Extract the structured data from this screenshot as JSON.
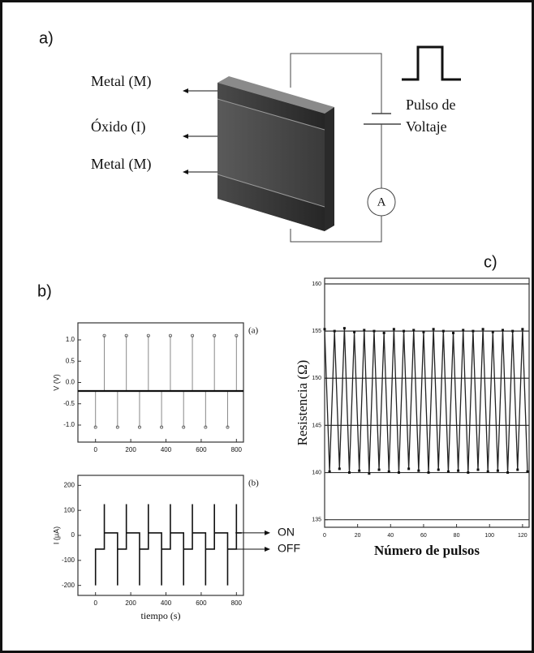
{
  "panel_labels": [
    "a)",
    "b)",
    "c)"
  ],
  "diagram": {
    "layers": [
      "Metal (M)",
      "Óxido (I)",
      "Metal (M)"
    ],
    "source": [
      "Pulso de",
      "Voltaje"
    ],
    "meter": "A"
  },
  "chart_data": [
    {
      "type": "stem",
      "panel": "(a)",
      "ylabel": "V (V)",
      "xlim": [
        -100,
        840
      ],
      "ylim": [
        -1.4,
        1.4
      ],
      "xticks": [
        0,
        200,
        400,
        600,
        800
      ],
      "yticks": [
        {
          "value": 1,
          "label": "1.0"
        },
        0.5,
        {
          "value": 0,
          "label": "0.0"
        },
        -0.5,
        {
          "value": -1,
          "label": "-1.0"
        }
      ],
      "color": "#111",
      "baseline": -0.2,
      "x": [
        0,
        50,
        125,
        175,
        250,
        300,
        375,
        425,
        500,
        550,
        625,
        675,
        750,
        800
      ],
      "values": [
        -1.05,
        1.1,
        -1.05,
        1.1,
        -1.05,
        1.1,
        -1.05,
        1.1,
        -1.05,
        1.1,
        -1.05,
        1.1,
        -1.05,
        1.1
      ]
    },
    {
      "type": "line",
      "panel": "(b)",
      "ylabel": "I (μA)",
      "xlabel": "tiempo (s)",
      "xlim": [
        -100,
        840
      ],
      "ylim": [
        -240,
        240
      ],
      "xticks": [
        0,
        200,
        400,
        600,
        800
      ],
      "yticks": [
        200,
        100,
        0,
        -100,
        -200
      ],
      "color": "#111",
      "x": [
        0,
        0,
        50,
        50,
        50,
        125,
        125,
        125,
        175,
        175,
        175,
        250,
        250,
        250,
        300,
        300,
        300,
        375,
        375,
        375,
        425,
        425,
        425,
        500,
        500,
        500,
        550,
        550,
        550,
        625,
        625,
        625,
        675,
        675,
        675,
        750,
        750,
        750,
        800,
        800,
        800,
        830
      ],
      "values": [
        -200,
        -55,
        -55,
        125,
        10,
        10,
        -200,
        -55,
        -55,
        125,
        10,
        10,
        -200,
        -55,
        -55,
        125,
        10,
        10,
        -200,
        -55,
        -55,
        125,
        10,
        10,
        -200,
        -55,
        -55,
        125,
        10,
        10,
        -200,
        -55,
        -55,
        125,
        10,
        10,
        -200,
        -55,
        -55,
        125,
        10,
        10
      ],
      "annotations": [
        {
          "text": "ON",
          "y": 10
        },
        {
          "text": "OFF",
          "y": -55
        }
      ]
    },
    {
      "type": "line",
      "ylabel": "Resistencia (Ω)",
      "xlabel": "Número de pulsos",
      "xlim": [
        0,
        124
      ],
      "ylim": [
        134.2,
        160.6
      ],
      "xticks": [
        0,
        20,
        40,
        60,
        80,
        100,
        120
      ],
      "yticks": [
        160,
        155,
        150,
        145,
        140,
        135
      ],
      "grid": true,
      "markers": true,
      "color": "#222",
      "x": [
        0,
        3,
        6,
        9,
        12,
        15,
        18,
        21,
        24,
        27,
        30,
        33,
        36,
        39,
        42,
        45,
        48,
        51,
        54,
        57,
        60,
        63,
        66,
        69,
        72,
        75,
        78,
        81,
        84,
        87,
        90,
        93,
        96,
        99,
        102,
        105,
        108,
        111,
        114,
        117,
        120,
        123
      ],
      "values": [
        155.2,
        140.1,
        155.0,
        140.4,
        155.3,
        140.0,
        154.9,
        140.2,
        155.1,
        139.9,
        155.0,
        140.3,
        154.8,
        140.1,
        155.2,
        140.0,
        155.0,
        140.4,
        155.1,
        140.2,
        154.9,
        140.0,
        155.2,
        140.3,
        155.0,
        140.1,
        154.8,
        140.2,
        155.1,
        140.0,
        155.0,
        140.3,
        155.2,
        140.1,
        154.9,
        140.2,
        155.1,
        140.0,
        155.0,
        140.3,
        155.2,
        140.1
      ]
    }
  ]
}
